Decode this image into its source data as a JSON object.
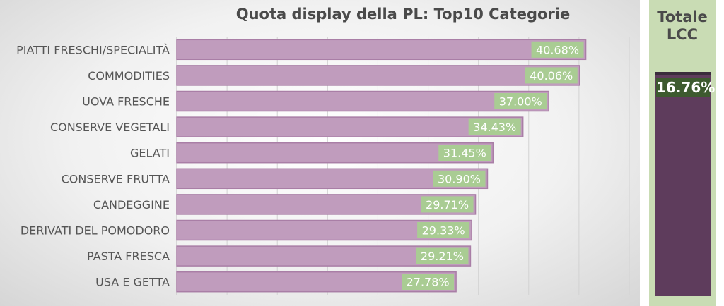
{
  "chart_data": {
    "type": "bar",
    "orientation": "horizontal",
    "title": "Quota display della PL: Top10 Categorie",
    "categories": [
      "PIATTI FRESCHI/SPECIALITÀ",
      "COMMODITIES",
      "UOVA FRESCHE",
      "CONSERVE VEGETALI",
      "GELATI",
      "CONSERVE FRUTTA",
      "CANDEGGINE",
      "DERIVATI DEL POMODORO",
      "PASTA FRESCA",
      "USA E GETTA"
    ],
    "values": [
      40.68,
      40.06,
      37.0,
      34.43,
      31.45,
      30.9,
      29.71,
      29.33,
      29.21,
      27.78
    ],
    "value_labels": [
      "40.68%",
      "40.06%",
      "37.00%",
      "34.43%",
      "31.45%",
      "30.90%",
      "29.71%",
      "29.33%",
      "29.21%",
      "27.78%"
    ],
    "xlim": [
      0,
      45
    ],
    "grid": true,
    "colors": {
      "bar": "#c09cbd",
      "bar_edge": "#a97ea6",
      "label_bg": "#a9cc93",
      "label_text": "#ffffff"
    }
  },
  "total": {
    "title": "Totale\nLCC",
    "value": 16.76,
    "value_label": "16.76%",
    "colors": {
      "panel": "#c9dcb4",
      "bar": "#5e3c5c",
      "label_bg": "#3d5a2f"
    }
  }
}
